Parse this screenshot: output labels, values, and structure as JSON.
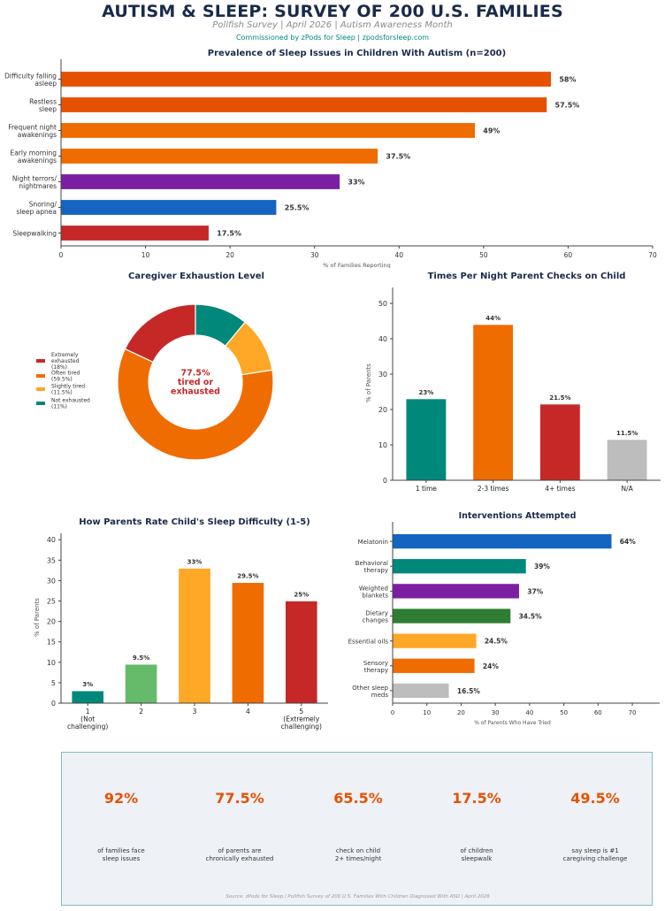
{
  "header": {
    "title": "AUTISM & SLEEP: SURVEY OF 200 U.S. FAMILIES",
    "subtitle": "Pollfish Survey | April 2026 | Autism Awareness Month",
    "commission": "Commissioned by zPods for Sleep | zpodsforsleep.com"
  },
  "chart_data": [
    {
      "type": "bar",
      "orientation": "horizontal",
      "title": "Prevalence of Sleep Issues in Children With Autism (n=200)",
      "xlabel": "% of Families Reporting",
      "ylabel": "",
      "xlim": [
        0,
        70
      ],
      "xticks": [
        "0",
        "10",
        "20",
        "30",
        "40",
        "50",
        "60",
        "70"
      ],
      "categories": [
        "Difficulty falling\nasleep",
        "Restless\nsleep",
        "Frequent night\nawakenings",
        "Early morning\nawakenings",
        "Night terrors/\nnightmares",
        "Snoring/\nsleep apnea",
        "Sleepwalking"
      ],
      "values": [
        58,
        57.5,
        49,
        37.5,
        33,
        25.5,
        17.5
      ],
      "labels": [
        "58%",
        "57.5%",
        "49%",
        "37.5%",
        "33%",
        "25.5%",
        "17.5%"
      ],
      "colors": [
        "#E65100",
        "#E65100",
        "#EF6C00",
        "#EF6C00",
        "#7B1FA2",
        "#1565C0",
        "#C62828"
      ],
      "grid": false
    },
    {
      "type": "pie",
      "donut": true,
      "title": "Caregiver Exhaustion Level",
      "center_label": "77.5%\ntired or\nexhausted",
      "categories": [
        "Extremely exhausted",
        "Often tired",
        "Slightly tired",
        "Not exhausted"
      ],
      "values": [
        18,
        59.5,
        11.5,
        11
      ],
      "legend": [
        "Extremely\nexhausted\n(18%)",
        "Often tired\n(59.5%)",
        "Slightly tired\n(11.5%)",
        "Not exhausted\n(11%)"
      ],
      "colors": [
        "#C62828",
        "#EF6C00",
        "#FFA726",
        "#00897B"
      ],
      "legend_position": "left"
    },
    {
      "type": "bar",
      "orientation": "vertical",
      "title": "Times Per Night Parent Checks on Child",
      "xlabel": "",
      "ylabel": "% of Parents",
      "ylim": [
        0,
        55
      ],
      "yticks": [
        "0",
        "10",
        "20",
        "30",
        "40",
        "50"
      ],
      "categories": [
        "1 time",
        "2-3 times",
        "4+ times",
        "N/A"
      ],
      "values": [
        23,
        44,
        21.5,
        11.5
      ],
      "labels": [
        "23%",
        "44%",
        "21.5%",
        "11.5%"
      ],
      "colors": [
        "#00897B",
        "#EF6C00",
        "#C62828",
        "#BDBDBD"
      ],
      "grid": false
    },
    {
      "type": "bar",
      "orientation": "vertical",
      "title": "How Parents Rate Child's Sleep Difficulty (1-5)",
      "xlabel": "",
      "ylabel": "% of Parents",
      "ylim": [
        0,
        42
      ],
      "yticks": [
        "0",
        "5",
        "10",
        "15",
        "20",
        "25",
        "30",
        "35",
        "40"
      ],
      "categories": [
        "1\n(Not\nchallenging)",
        "2",
        "3",
        "4",
        "5\n(Extremely\nchallenging)"
      ],
      "values": [
        3,
        9.5,
        33,
        29.5,
        25
      ],
      "labels": [
        "3%",
        "9.5%",
        "33%",
        "29.5%",
        "25%"
      ],
      "colors": [
        "#00897B",
        "#66BB6A",
        "#FFA726",
        "#EF6C00",
        "#C62828"
      ],
      "grid": false
    },
    {
      "type": "bar",
      "orientation": "horizontal",
      "title": "Interventions Attempted",
      "xlabel": "% of Parents Who Have Tried",
      "ylabel": "",
      "xlim": [
        0,
        78
      ],
      "xticks": [
        "0",
        "10",
        "20",
        "30",
        "40",
        "50",
        "60",
        "70"
      ],
      "categories": [
        "Melatonin",
        "Behavioral\ntherapy",
        "Weighted\nblankets",
        "Dietary\nchanges",
        "Essential oils",
        "Sensory\ntherapy",
        "Other sleep\nmeds"
      ],
      "values": [
        64,
        39,
        37,
        34.5,
        24.5,
        24,
        16.5
      ],
      "labels": [
        "64%",
        "39%",
        "37%",
        "34.5%",
        "24.5%",
        "24%",
        "16.5%"
      ],
      "colors": [
        "#1565C0",
        "#00897B",
        "#7B1FA2",
        "#2E7D32",
        "#FFA726",
        "#EF6C00",
        "#BDBDBD"
      ],
      "grid": false
    }
  ],
  "stats": [
    {
      "value": "92%",
      "label": "of families face\nsleep issues"
    },
    {
      "value": "77.5%",
      "label": "of parents are\nchronically exhausted"
    },
    {
      "value": "65.5%",
      "label": "check on child\n2+ times/night"
    },
    {
      "value": "17.5%",
      "label": "of children\nsleepwalk"
    },
    {
      "value": "49.5%",
      "label": "say sleep is #1\ncaregiving challenge"
    }
  ],
  "source": "Source: zPods for Sleep / Pollfish Survey of 200 U.S. Families With Children Diagnosed With ASD | April 2026",
  "colors": {
    "title": "#1a2a4a",
    "accent": "#E65100",
    "teal": "#00897B",
    "center_label": "#C62828"
  }
}
